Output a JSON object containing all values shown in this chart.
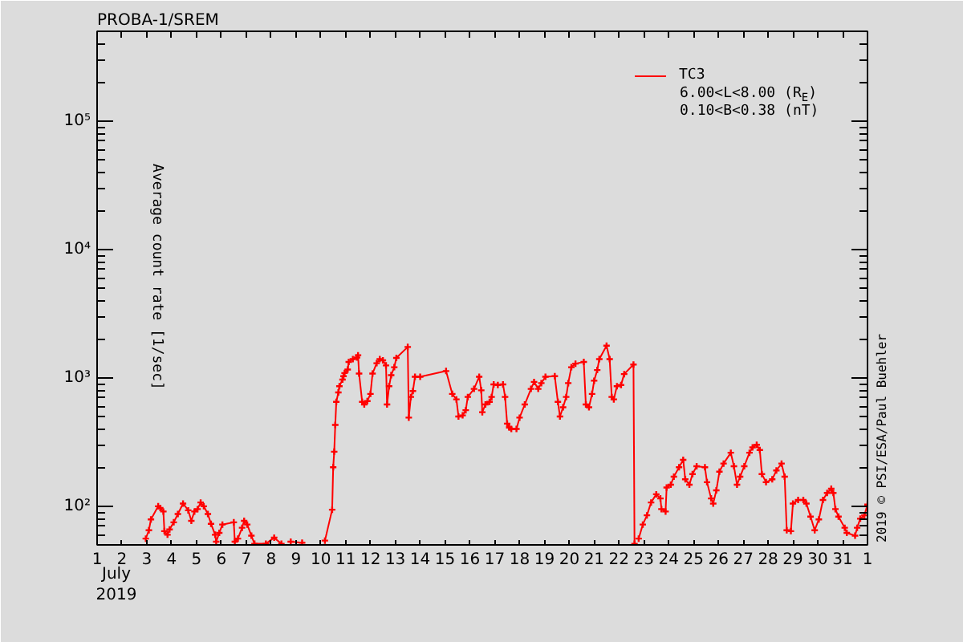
{
  "chart_data": {
    "type": "line",
    "title": "PROBA-1/SREM",
    "xlabel": "July\n2019",
    "ylabel": "Average count rate [1/sec]",
    "annotations": [
      "6.00<L<8.00 (R$_{E}$)",
      "0.10<B<0.38 (nT)",
      "2019 © PSI/ESA/Paul Buehler"
    ],
    "log": true,
    "legend": "top right",
    "marker": "cross",
    "line_style": "solid",
    "xlim": [
      "2019-07-01",
      "2019-08-01"
    ],
    "ylim": [
      50,
      500000
    ],
    "xticks": [
      {
        "value": "2019-07-01",
        "label": "1"
      },
      {
        "value": "2019-07-02",
        "label": "2"
      },
      {
        "value": "2019-07-03",
        "label": "3"
      },
      {
        "value": "2019-07-04",
        "label": "4"
      },
      {
        "value": "2019-07-05",
        "label": "5"
      },
      {
        "value": "2019-07-06",
        "label": "6"
      },
      {
        "value": "2019-07-07",
        "label": "7"
      },
      {
        "value": "2019-07-08",
        "label": "8"
      },
      {
        "value": "2019-07-09",
        "label": "9"
      },
      {
        "value": "2019-07-10",
        "label": "10"
      },
      {
        "value": "2019-07-11",
        "label": "11"
      },
      {
        "value": "2019-07-12",
        "label": "12"
      },
      {
        "value": "2019-07-13",
        "label": "13"
      },
      {
        "value": "2019-07-14",
        "label": "14"
      },
      {
        "value": "2019-07-15",
        "label": "15"
      },
      {
        "value": "2019-07-16",
        "label": "16"
      },
      {
        "value": "2019-07-17",
        "label": "17"
      },
      {
        "value": "2019-07-18",
        "label": "18"
      },
      {
        "value": "2019-07-19",
        "label": "19"
      },
      {
        "value": "2019-07-20",
        "label": "20"
      },
      {
        "value": "2019-07-21",
        "label": "21"
      },
      {
        "value": "2019-07-22",
        "label": "22"
      },
      {
        "value": "2019-07-23",
        "label": "23"
      },
      {
        "value": "2019-07-24",
        "label": "24"
      },
      {
        "value": "2019-07-25",
        "label": "25"
      },
      {
        "value": "2019-07-26",
        "label": "26"
      },
      {
        "value": "2019-07-27",
        "label": "27"
      },
      {
        "value": "2019-07-28",
        "label": "28"
      },
      {
        "value": "2019-07-29",
        "label": "29"
      },
      {
        "value": "2019-07-30",
        "label": "30"
      },
      {
        "value": "2019-07-31",
        "label": "31"
      },
      {
        "value": "2019-08-01",
        "label": "1"
      }
    ],
    "yticks": [
      {
        "value": 100,
        "label": "10²"
      },
      {
        "value": 1000,
        "label": "10³"
      },
      {
        "value": 10000,
        "label": "10⁴"
      },
      {
        "value": 100000,
        "label": "10⁵"
      }
    ],
    "series": [
      {
        "name": "TC3",
        "color": "#ff0000",
        "x": [
          "2019-07-02T23:00",
          "2019-07-03T02:00",
          "2019-07-03T04:00",
          "2019-07-03T11:00",
          "2019-07-03T13:00",
          "2019-07-03T16:00",
          "2019-07-03T17:00",
          "2019-07-03T20:00",
          "2019-07-03T22:00",
          "2019-07-04T02:00",
          "2019-07-04T06:00",
          "2019-07-04T11:00",
          "2019-07-04T16:00",
          "2019-07-04T19:00",
          "2019-07-04T22:00",
          "2019-07-05T01:00",
          "2019-07-05T04:00",
          "2019-07-05T07:00",
          "2019-07-05T11:00",
          "2019-07-05T14:00",
          "2019-07-05T18:00",
          "2019-07-05T19:00",
          "2019-07-05T22:00",
          "2019-07-06T01:00",
          "2019-07-06T12:00",
          "2019-07-06T13:00",
          "2019-07-06T16:00",
          "2019-07-06T20:00",
          "2019-07-06T22:00",
          "2019-07-07T01:00",
          "2019-07-07T05:00",
          "2019-07-07T08:00",
          "2019-07-07T19:00",
          "2019-07-08T03:00",
          "2019-07-08T10:00",
          "2019-07-08T14:00",
          "2019-07-08T19:00",
          "2019-07-09T06:00",
          "2019-07-09T18:00",
          "2019-07-10T04:00",
          "2019-07-10T11:00",
          "2019-07-10T12:00",
          "2019-07-10T13:00",
          "2019-07-10T14:00",
          "2019-07-10T15:00",
          "2019-07-10T17:00",
          "2019-07-10T18:00",
          "2019-07-10T21:00",
          "2019-07-10T22:00",
          "2019-07-10T23:00",
          "2019-07-11T02:00",
          "2019-07-11T03:00",
          "2019-07-11T07:00",
          "2019-07-11T11:00",
          "2019-07-11T12:00",
          "2019-07-11T13:00",
          "2019-07-11T16:00",
          "2019-07-11T18:00",
          "2019-07-11T21:00",
          "2019-07-12T00:00",
          "2019-07-12T02:00",
          "2019-07-12T06:00",
          "2019-07-12T09:00",
          "2019-07-12T12:00",
          "2019-07-12T15:00",
          "2019-07-12T16:00",
          "2019-07-12T18:00",
          "2019-07-12T20:00",
          "2019-07-12T23:00",
          "2019-07-13T01:00",
          "2019-07-13T12:00",
          "2019-07-13T13:00",
          "2019-07-13T15:00",
          "2019-07-13T17:00",
          "2019-07-13T19:00",
          "2019-07-14T00:00",
          "2019-07-15T01:00",
          "2019-07-15T07:00",
          "2019-07-15T11:00",
          "2019-07-15T13:00",
          "2019-07-15T17:00",
          "2019-07-15T20:00",
          "2019-07-15T22:00",
          "2019-07-16T04:00",
          "2019-07-16T09:00",
          "2019-07-16T11:00",
          "2019-07-16T12:00",
          "2019-07-16T15:00",
          "2019-07-16T19:00",
          "2019-07-16T21:00",
          "2019-07-16T23:00",
          "2019-07-17T03:00",
          "2019-07-17T08:00",
          "2019-07-17T10:00",
          "2019-07-17T12:00",
          "2019-07-17T14:00",
          "2019-07-17T16:00",
          "2019-07-17T21:00",
          "2019-07-18T00:00",
          "2019-07-18T05:00",
          "2019-07-18T11:00",
          "2019-07-18T14:00",
          "2019-07-18T18:00",
          "2019-07-18T21:00",
          "2019-07-19T01:00",
          "2019-07-19T10:00",
          "2019-07-19T13:00",
          "2019-07-19T15:00",
          "2019-07-19T18:00",
          "2019-07-19T21:00",
          "2019-07-19T23:00",
          "2019-07-20T02:00",
          "2019-07-20T06:00",
          "2019-07-20T14:00",
          "2019-07-20T16:00",
          "2019-07-20T19:00",
          "2019-07-20T22:00",
          "2019-07-21T00:00",
          "2019-07-21T03:00",
          "2019-07-21T05:00",
          "2019-07-21T12:00",
          "2019-07-21T15:00",
          "2019-07-21T17:00",
          "2019-07-21T19:00",
          "2019-07-21T22:00",
          "2019-07-22T02:00",
          "2019-07-22T05:00",
          "2019-07-22T14:00",
          "2019-07-22T15:00",
          "2019-07-22T17:00",
          "2019-07-22T19:00",
          "2019-07-22T23:00",
          "2019-07-23T03:00",
          "2019-07-23T07:00",
          "2019-07-23T12:00",
          "2019-07-23T16:00",
          "2019-07-23T17:00",
          "2019-07-23T21:00",
          "2019-07-23T22:00",
          "2019-07-24T02:00",
          "2019-07-24T05:00",
          "2019-07-24T10:00",
          "2019-07-24T14:00",
          "2019-07-24T16:00",
          "2019-07-24T20:00",
          "2019-07-24T23:00",
          "2019-07-25T03:00",
          "2019-07-25T11:00",
          "2019-07-25T13:00",
          "2019-07-25T17:00",
          "2019-07-25T19:00",
          "2019-07-25T22:00",
          "2019-07-26T01:00",
          "2019-07-26T05:00",
          "2019-07-26T12:00",
          "2019-07-26T15:00",
          "2019-07-26T18:00",
          "2019-07-26T21:00",
          "2019-07-27T01:00",
          "2019-07-27T06:00",
          "2019-07-27T09:00",
          "2019-07-27T13:00",
          "2019-07-27T16:00",
          "2019-07-27T18:00",
          "2019-07-27T22:00",
          "2019-07-28T04:00",
          "2019-07-28T08:00",
          "2019-07-28T13:00",
          "2019-07-28T16:00",
          "2019-07-28T18:00",
          "2019-07-28T22:00",
          "2019-07-29T00:00",
          "2019-07-29T05:00",
          "2019-07-29T10:00",
          "2019-07-29T13:00",
          "2019-07-29T17:00",
          "2019-07-29T21:00",
          "2019-07-30T01:00",
          "2019-07-30T05:00",
          "2019-07-30T09:00",
          "2019-07-30T13:00",
          "2019-07-30T15:00",
          "2019-07-30T17:00",
          "2019-07-30T20:00",
          "2019-07-31T02:00",
          "2019-07-31T04:00",
          "2019-07-31T12:00",
          "2019-07-31T14:00",
          "2019-07-31T17:00",
          "2019-07-31T21:00",
          "2019-08-01T00:00"
        ],
        "values": [
          56,
          65,
          79,
          100,
          97,
          91,
          64,
          60,
          66,
          75,
          87,
          105,
          93,
          77,
          91,
          95,
          107,
          100,
          87,
          73,
          60,
          53,
          62,
          72,
          75,
          53,
          56,
          68,
          77,
          72,
          59,
          51,
          51,
          57,
          51,
          null,
          53,
          52,
          null,
          54,
          94,
          201,
          266,
          430,
          650,
          770,
          860,
          970,
          1030,
          1090,
          1160,
          1330,
          1400,
          1440,
          1500,
          1080,
          650,
          620,
          660,
          750,
          1080,
          1300,
          1400,
          1370,
          1250,
          620,
          860,
          1050,
          1210,
          1430,
          1740,
          490,
          710,
          790,
          1020,
          1020,
          1130,
          750,
          680,
          500,
          510,
          560,
          710,
          820,
          1020,
          800,
          540,
          620,
          650,
          710,
          890,
          880,
          890,
          710,
          440,
          410,
          400,
          400,
          490,
          620,
          820,
          930,
          820,
          910,
          1020,
          1030,
          650,
          500,
          590,
          710,
          910,
          1210,
          1290,
          1330,
          620,
          590,
          750,
          950,
          1150,
          1400,
          1780,
          1400,
          710,
          680,
          860,
          880,
          1070,
          1270,
          51,
          null,
          56,
          72,
          85,
          107,
          124,
          115,
          95,
          91,
          140,
          147,
          170,
          201,
          230,
          162,
          147,
          178,
          205,
          201,
          154,
          115,
          105,
          133,
          186,
          215,
          261,
          205,
          147,
          170,
          205,
          261,
          287,
          301,
          274,
          178,
          154,
          162,
          190,
          215,
          170,
          65,
          64,
          105,
          112,
          112,
          105,
          83,
          65,
          79,
          112,
          127,
          137,
          127,
          95,
          83,
          68,
          62,
          59,
          68,
          80,
          85,
          103
        ]
      }
    ]
  }
}
